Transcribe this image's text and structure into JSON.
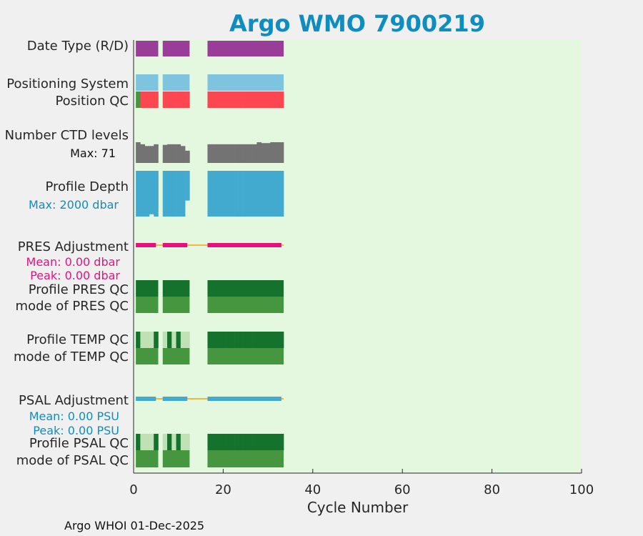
{
  "chart_data": {
    "type": "table",
    "title": "Argo WMO 7900219",
    "xlabel": "Cycle Number",
    "xlim": [
      0,
      100
    ],
    "xticks": [
      "0",
      "20",
      "40",
      "60",
      "80",
      "100"
    ],
    "footer": "Argo WHOI 01-Dec-2025",
    "colors": {
      "title": "#0e8ec0",
      "background": "#e3f8df",
      "date_type": "#993d99",
      "positioning": "#7ec4df",
      "qc_good": "#45963f",
      "qc_bad": "#fc4650",
      "ctd_levels": "#737373",
      "profile_depth": "#43aacf",
      "pres_adjust": "#e8107e",
      "psal_adjust": "#43aacf",
      "zero_line": "#f5b63c",
      "qc_A": "#14722d",
      "qc_light": "#c0e1b4",
      "pres_text": "#e8107e",
      "psal_text": "#0e8ec0"
    },
    "rows": [
      {
        "label": "Date Type (R/D)"
      },
      {
        "label": "Positioning System"
      },
      {
        "label": "Position QC"
      },
      {
        "label": "Number CTD levels",
        "sublabel": "Max: 71"
      },
      {
        "label": "Profile Depth",
        "sublabel": "Max: 2000 dbar"
      },
      {
        "label": "PRES Adjustment",
        "sublabel": "Mean: 0.00 dbar",
        "sublabel2": "Peak: 0.00 dbar"
      },
      {
        "label": "Profile PRES QC"
      },
      {
        "label": "mode of PRES QC"
      },
      {
        "label": "Profile TEMP QC"
      },
      {
        "label": "mode of TEMP QC"
      },
      {
        "label": "PSAL Adjustment",
        "sublabel": "Mean: 0.00 PSU",
        "sublabel2": "Peak: 0.00 PSU"
      },
      {
        "label": "Profile PSAL QC"
      },
      {
        "label": "mode of PSAL QC"
      }
    ],
    "cycle_segments": [
      [
        0.5,
        5.5
      ],
      [
        6.5,
        12.5
      ],
      [
        16.5,
        33.5
      ]
    ],
    "position_qc_bad_cycles": [
      2,
      3,
      4,
      5,
      7,
      8,
      9,
      10,
      11,
      12,
      17,
      18,
      19,
      20,
      21,
      22,
      23,
      24,
      25,
      26,
      27,
      28,
      29,
      30,
      31,
      32,
      33
    ],
    "position_qc_good_cycles": [
      1
    ],
    "ctd_levels": {
      "max": 71,
      "cycles": [
        1,
        2,
        3,
        4,
        5,
        7,
        8,
        9,
        10,
        11,
        12,
        17,
        18,
        19,
        20,
        21,
        22,
        23,
        24,
        25,
        26,
        27,
        28,
        29,
        30,
        31,
        32,
        33
      ],
      "values": [
        71,
        64,
        58,
        58,
        64,
        62,
        64,
        64,
        64,
        58,
        42,
        64,
        64,
        64,
        64,
        64,
        64,
        64,
        64,
        64,
        64,
        64,
        71,
        68,
        68,
        71,
        71,
        71
      ]
    },
    "profile_depth": {
      "max": 2000,
      "cycles": [
        1,
        2,
        3,
        4,
        5,
        7,
        8,
        9,
        10,
        11,
        12,
        17,
        18,
        19,
        20,
        21,
        22,
        23,
        24,
        25,
        26,
        27,
        28,
        29,
        30,
        31,
        32,
        33
      ],
      "values": [
        2000,
        2000,
        2000,
        1900,
        2000,
        2000,
        2000,
        2000,
        2000,
        2000,
        1300,
        2000,
        2000,
        2000,
        2000,
        2000,
        2000,
        2000,
        2000,
        2000,
        2000,
        2000,
        2000,
        2000,
        2000,
        2000,
        2000,
        2000
      ]
    },
    "pres_adjustment_mean": 0.0,
    "pres_adjustment_peak": 0.0,
    "psal_adjustment_mean": 0.0,
    "psal_adjustment_peak": 0.0,
    "adjust_line_range": [
      0.5,
      33.5
    ],
    "temp_psal_profile_qc": {
      "light_cycles": [
        2,
        3,
        4,
        7,
        9,
        11,
        12
      ],
      "dark_cycles": [
        1,
        5,
        8,
        10
      ]
    }
  }
}
